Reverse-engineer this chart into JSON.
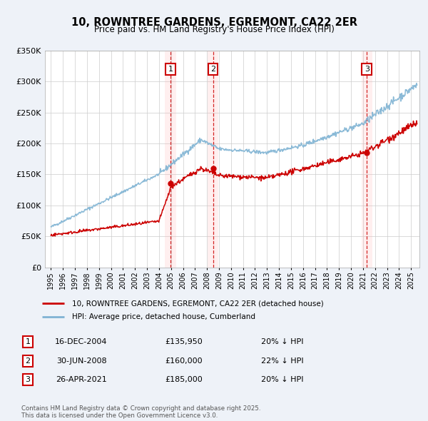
{
  "title": "10, ROWNTREE GARDENS, EGREMONT, CA22 2ER",
  "subtitle": "Price paid vs. HM Land Registry's House Price Index (HPI)",
  "bg_color": "#eef2f8",
  "plot_bg_color": "#ffffff",
  "grid_color": "#cccccc",
  "red_color": "#cc0000",
  "blue_color": "#7fb3d3",
  "vline_color": "#cc0000",
  "ylim": [
    0,
    350000
  ],
  "yticks": [
    0,
    50000,
    100000,
    150000,
    200000,
    250000,
    300000,
    350000
  ],
  "ytick_labels": [
    "£0",
    "£50K",
    "£100K",
    "£150K",
    "£200K",
    "£250K",
    "£300K",
    "£350K"
  ],
  "xlim_start": 1994.5,
  "xlim_end": 2025.7,
  "sales": [
    {
      "date": 2004.96,
      "price": 135950,
      "label": "1"
    },
    {
      "date": 2008.5,
      "price": 160000,
      "label": "2"
    },
    {
      "date": 2021.32,
      "price": 185000,
      "label": "3"
    }
  ],
  "table_rows": [
    {
      "num": "1",
      "date": "16-DEC-2004",
      "price": "£135,950",
      "pct": "20% ↓ HPI"
    },
    {
      "num": "2",
      "date": "30-JUN-2008",
      "price": "£160,000",
      "pct": "22% ↓ HPI"
    },
    {
      "num": "3",
      "date": "26-APR-2021",
      "price": "£185,000",
      "pct": "20% ↓ HPI"
    }
  ],
  "legend_line1": "10, ROWNTREE GARDENS, EGREMONT, CA22 2ER (detached house)",
  "legend_line2": "HPI: Average price, detached house, Cumberland",
  "footer": "Contains HM Land Registry data © Crown copyright and database right 2025.\nThis data is licensed under the Open Government Licence v3.0."
}
